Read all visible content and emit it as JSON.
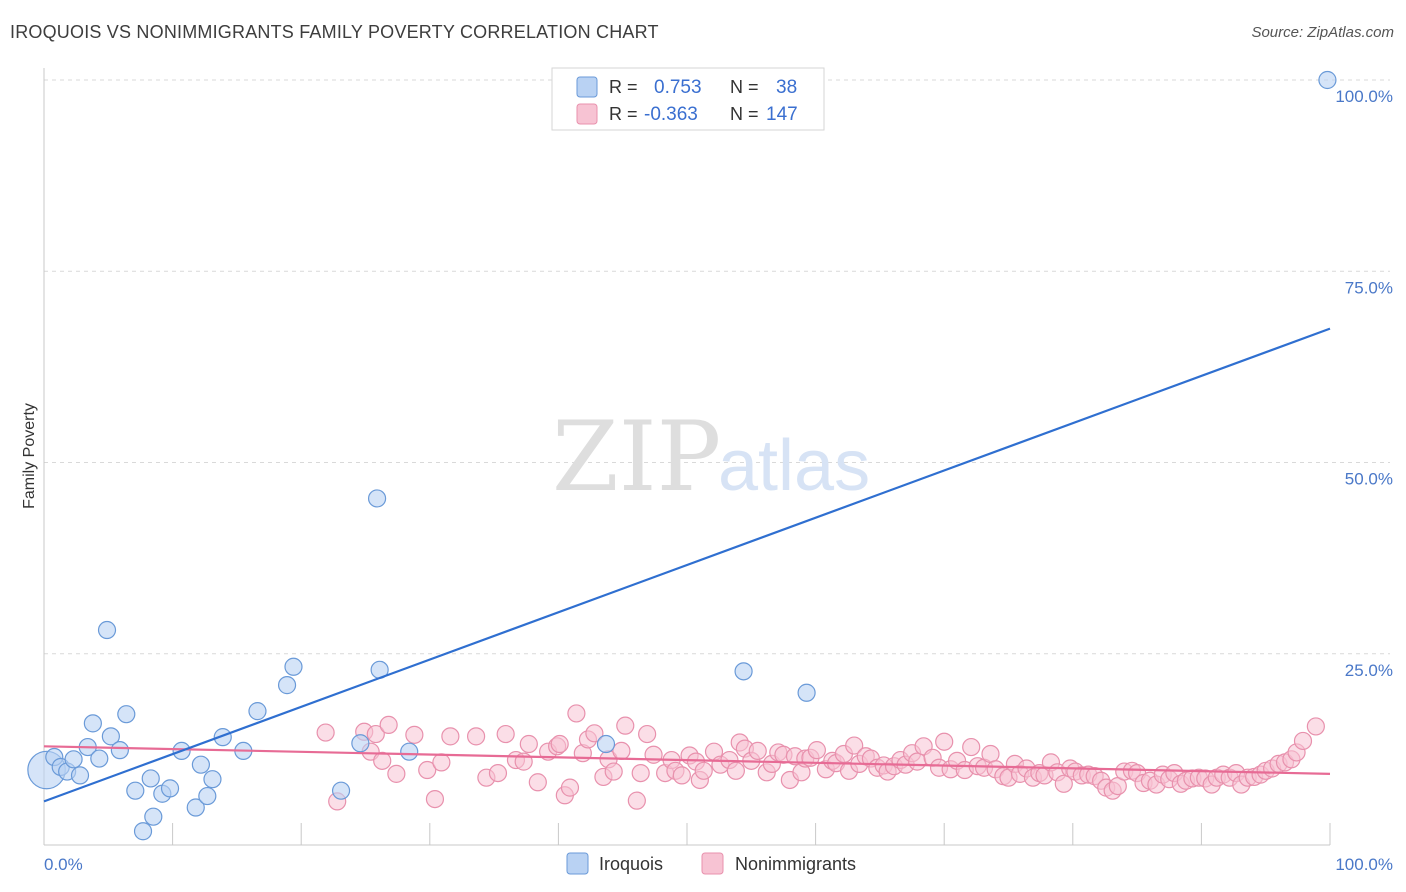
{
  "title": "IROQUOIS VS NONIMMIGRANTS FAMILY POVERTY CORRELATION CHART",
  "source": "Source: ZipAtlas.com",
  "watermark": {
    "part1": "ZIP",
    "part2": "atlas"
  },
  "colors": {
    "blue_fill": "#b9d2f3",
    "blue_stroke": "#6a9ad8",
    "blue_line": "#2f6fd0",
    "pink_fill": "#f7c3d3",
    "pink_stroke": "#e891ad",
    "pink_line": "#e76b95",
    "axis_text": "#4a78c8",
    "grid": "#d9d9d9"
  },
  "legend": {
    "rows": [
      {
        "r_label": "R =",
        "r_value": "0.753",
        "n_label": "N =",
        "n_value": "38"
      },
      {
        "r_label": "R =",
        "r_value": "-0.363",
        "n_label": "N =",
        "n_value": "147"
      }
    ]
  },
  "chart_data": {
    "type": "scatter",
    "title": "IROQUOIS VS NONIMMIGRANTS FAMILY POVERTY CORRELATION CHART",
    "xlabel": "",
    "ylabel": "Family Poverty",
    "xlim": [
      0,
      100
    ],
    "ylim": [
      0,
      100
    ],
    "x_tick_labels": [
      "0.0%",
      "100.0%"
    ],
    "y_ticks": [
      25,
      50,
      75,
      100
    ],
    "y_tick_labels": [
      "25.0%",
      "50.0%",
      "75.0%",
      "100.0%"
    ],
    "series": [
      {
        "name": "Iroquois",
        "r": 0.753,
        "n": 38,
        "trend": {
          "x0": 0,
          "y0": 5.7,
          "x1": 100,
          "y1": 67.5
        },
        "points": [
          [
            0.2,
            9.8,
            2.2
          ],
          [
            0.8,
            11.5,
            1
          ],
          [
            1.3,
            10.2,
            1
          ],
          [
            1.8,
            9.6,
            1
          ],
          [
            2.3,
            11.2,
            1
          ],
          [
            2.8,
            9.1,
            1
          ],
          [
            3.4,
            12.8,
            1
          ],
          [
            3.8,
            15.9,
            1
          ],
          [
            4.3,
            11.3,
            1
          ],
          [
            4.9,
            28.1,
            1
          ],
          [
            5.2,
            14.2,
            1
          ],
          [
            5.9,
            12.4,
            1
          ],
          [
            6.4,
            17.1,
            1
          ],
          [
            7.1,
            7.1,
            1
          ],
          [
            7.7,
            1.8,
            1
          ],
          [
            8.3,
            8.7,
            1
          ],
          [
            8.5,
            3.7,
            1
          ],
          [
            9.2,
            6.7,
            1
          ],
          [
            9.8,
            7.4,
            1
          ],
          [
            10.7,
            12.3,
            1
          ],
          [
            11.8,
            4.9,
            1
          ],
          [
            12.2,
            10.5,
            1
          ],
          [
            12.7,
            6.4,
            1
          ],
          [
            13.1,
            8.6,
            1
          ],
          [
            13.9,
            14.1,
            1
          ],
          [
            15.5,
            12.3,
            1
          ],
          [
            16.6,
            17.5,
            1
          ],
          [
            18.9,
            20.9,
            1
          ],
          [
            19.4,
            23.3,
            1
          ],
          [
            23.1,
            7.1,
            1
          ],
          [
            24.6,
            13.3,
            1
          ],
          [
            25.9,
            45.3,
            1
          ],
          [
            26.1,
            22.9,
            1
          ],
          [
            28.4,
            12.2,
            1
          ],
          [
            43.7,
            13.2,
            1
          ],
          [
            54.4,
            22.7,
            1
          ],
          [
            59.3,
            19.9,
            1
          ],
          [
            99.8,
            100,
            1
          ]
        ]
      },
      {
        "name": "Nonimmigrants",
        "r": -0.363,
        "n": 147,
        "trend": {
          "x0": 0,
          "y0": 12.9,
          "x1": 100,
          "y1": 9.3
        },
        "points": [
          [
            21.9,
            14.7
          ],
          [
            22.8,
            5.7
          ],
          [
            24.9,
            14.8
          ],
          [
            25.4,
            12.2
          ],
          [
            25.8,
            14.5
          ],
          [
            26.3,
            11.0
          ],
          [
            26.8,
            15.7
          ],
          [
            27.4,
            9.3
          ],
          [
            28.8,
            14.4
          ],
          [
            29.8,
            9.8
          ],
          [
            30.4,
            6.0
          ],
          [
            30.9,
            10.8
          ],
          [
            31.6,
            14.2
          ],
          [
            33.6,
            14.2
          ],
          [
            34.4,
            8.8
          ],
          [
            35.3,
            9.4
          ],
          [
            35.9,
            14.5
          ],
          [
            36.7,
            11.1
          ],
          [
            37.3,
            10.9
          ],
          [
            37.7,
            13.2
          ],
          [
            38.4,
            8.2
          ],
          [
            39.2,
            12.2
          ],
          [
            39.9,
            12.9
          ],
          [
            40.1,
            13.2
          ],
          [
            40.5,
            6.5
          ],
          [
            40.9,
            7.5
          ],
          [
            41.4,
            17.2
          ],
          [
            41.9,
            12.0
          ],
          [
            42.3,
            13.8
          ],
          [
            42.8,
            14.6
          ],
          [
            43.5,
            8.9
          ],
          [
            43.9,
            11.2
          ],
          [
            44.3,
            9.6
          ],
          [
            44.9,
            12.3
          ],
          [
            45.2,
            15.6
          ],
          [
            46.1,
            5.8
          ],
          [
            46.4,
            9.4
          ],
          [
            46.9,
            14.5
          ],
          [
            47.4,
            11.8
          ],
          [
            48.3,
            9.4
          ],
          [
            48.8,
            11.1
          ],
          [
            49.1,
            9.7
          ],
          [
            49.6,
            9.1
          ],
          [
            50.2,
            11.7
          ],
          [
            50.7,
            10.9
          ],
          [
            51.0,
            8.5
          ],
          [
            51.3,
            9.7
          ],
          [
            52.1,
            12.2
          ],
          [
            52.6,
            10.5
          ],
          [
            53.3,
            11.1
          ],
          [
            53.8,
            9.7
          ],
          [
            54.1,
            13.4
          ],
          [
            54.5,
            12.6
          ],
          [
            55.0,
            11.0
          ],
          [
            55.5,
            12.3
          ],
          [
            56.2,
            9.5
          ],
          [
            56.6,
            10.6
          ],
          [
            57.1,
            12.1
          ],
          [
            57.5,
            11.8
          ],
          [
            58.0,
            8.5
          ],
          [
            58.4,
            11.6
          ],
          [
            58.9,
            9.5
          ],
          [
            59.2,
            11.3
          ],
          [
            59.6,
            11.4
          ],
          [
            60.1,
            12.4
          ],
          [
            60.8,
            9.9
          ],
          [
            61.3,
            11.0
          ],
          [
            61.6,
            10.7
          ],
          [
            62.2,
            11.9
          ],
          [
            62.6,
            9.7
          ],
          [
            63.0,
            13.0
          ],
          [
            63.4,
            10.6
          ],
          [
            63.9,
            11.6
          ],
          [
            64.3,
            11.3
          ],
          [
            64.8,
            10.1
          ],
          [
            65.3,
            10.4
          ],
          [
            65.6,
            9.6
          ],
          [
            66.1,
            10.3
          ],
          [
            66.6,
            11.1
          ],
          [
            67.0,
            10.5
          ],
          [
            67.5,
            12.0
          ],
          [
            67.9,
            10.9
          ],
          [
            68.4,
            12.9
          ],
          [
            69.1,
            11.4
          ],
          [
            69.6,
            10.1
          ],
          [
            70.0,
            13.5
          ],
          [
            70.5,
            9.9
          ],
          [
            71.0,
            11.0
          ],
          [
            71.6,
            9.8
          ],
          [
            72.1,
            12.8
          ],
          [
            72.6,
            10.3
          ],
          [
            73.1,
            10.1
          ],
          [
            73.6,
            11.9
          ],
          [
            74.0,
            9.9
          ],
          [
            74.6,
            9.0
          ],
          [
            75.0,
            8.8
          ],
          [
            75.5,
            10.6
          ],
          [
            75.9,
            9.3
          ],
          [
            76.4,
            10.0
          ],
          [
            76.9,
            8.8
          ],
          [
            77.4,
            9.4
          ],
          [
            77.8,
            9.1
          ],
          [
            78.3,
            10.8
          ],
          [
            78.8,
            9.5
          ],
          [
            79.3,
            8.0
          ],
          [
            79.8,
            10.0
          ],
          [
            80.2,
            9.6
          ],
          [
            80.7,
            9.1
          ],
          [
            81.2,
            9.2
          ],
          [
            81.7,
            9.0
          ],
          [
            82.2,
            8.4
          ],
          [
            82.6,
            7.5
          ],
          [
            83.1,
            7.1
          ],
          [
            83.5,
            7.7
          ],
          [
            84.0,
            9.6
          ],
          [
            84.6,
            9.7
          ],
          [
            85.0,
            9.4
          ],
          [
            85.5,
            8.1
          ],
          [
            86.0,
            8.4
          ],
          [
            86.5,
            7.9
          ],
          [
            87.0,
            9.2
          ],
          [
            87.5,
            8.6
          ],
          [
            87.9,
            9.4
          ],
          [
            88.4,
            8.0
          ],
          [
            88.8,
            8.4
          ],
          [
            89.3,
            8.7
          ],
          [
            89.8,
            8.8
          ],
          [
            90.3,
            8.7
          ],
          [
            90.8,
            7.9
          ],
          [
            91.2,
            8.8
          ],
          [
            91.7,
            9.2
          ],
          [
            92.2,
            8.8
          ],
          [
            92.7,
            9.4
          ],
          [
            93.1,
            7.9
          ],
          [
            93.6,
            8.8
          ],
          [
            94.1,
            8.9
          ],
          [
            94.6,
            9.2
          ],
          [
            95.0,
            9.7
          ],
          [
            95.5,
            10.0
          ],
          [
            96.0,
            10.6
          ],
          [
            96.5,
            10.8
          ],
          [
            97.0,
            11.2
          ],
          [
            97.4,
            12.1
          ],
          [
            97.9,
            13.6
          ],
          [
            98.9,
            15.5
          ]
        ]
      }
    ]
  }
}
